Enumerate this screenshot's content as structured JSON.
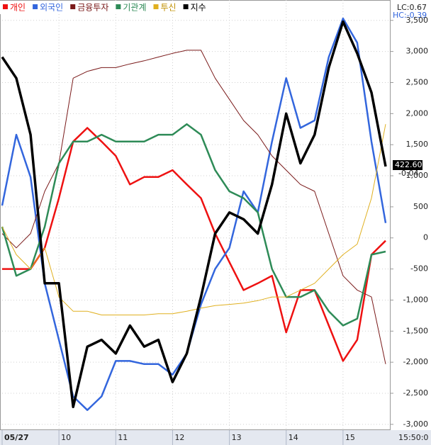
{
  "chart_data": {
    "type": "line",
    "x": [
      0,
      1,
      2,
      3,
      4,
      5,
      6,
      7,
      8,
      9,
      10,
      11,
      12,
      13,
      14,
      15,
      16,
      17,
      18,
      19,
      20,
      21,
      22,
      23,
      24,
      25,
      26,
      27
    ],
    "xlim": [
      0,
      27.35
    ],
    "xticks": [
      {
        "value": 0,
        "label": "05/27"
      },
      {
        "value": 4,
        "label": "10"
      },
      {
        "value": 8,
        "label": "11"
      },
      {
        "value": 12,
        "label": "12"
      },
      {
        "value": 16,
        "label": "13"
      },
      {
        "value": 20,
        "label": "14"
      },
      {
        "value": 24,
        "label": "15"
      }
    ],
    "ylim": [
      -3070,
      3600
    ],
    "yticks": [
      {
        "value": 3500,
        "label": "3,500"
      },
      {
        "value": 3000,
        "label": "3,000"
      },
      {
        "value": 2500,
        "label": "2,500"
      },
      {
        "value": 2000,
        "label": "2,000"
      },
      {
        "value": 1500,
        "label": "1,500"
      },
      {
        "value": 1000,
        "label": "1,000"
      },
      {
        "value": 500,
        "label": "500"
      },
      0,
      {
        "value": -500,
        "label": "-500"
      },
      {
        "value": -1000,
        "label": "-1,000"
      },
      {
        "value": -1500,
        "label": "-1,500"
      },
      {
        "value": -2000,
        "label": "-2,000"
      },
      {
        "value": -2500,
        "label": "-2,500"
      },
      {
        "value": -3000,
        "label": "-3,000"
      }
    ],
    "grid": true,
    "series": [
      {
        "name": "개인",
        "color": "#ee1111",
        "values": [
          -500,
          -500,
          -500,
          -160,
          640,
          1550,
          1770,
          1550,
          1320,
          860,
          980,
          980,
          1090,
          860,
          640,
          70,
          -390,
          -840,
          -730,
          -610,
          -1520,
          -840,
          -840,
          -1410,
          -1980,
          -1640,
          -270,
          -45
        ]
      },
      {
        "name": "외국인",
        "color": "#3366dd",
        "values": [
          520,
          1660,
          980,
          -730,
          -1640,
          -2550,
          -2770,
          -2550,
          -1980,
          -1980,
          -2030,
          -2030,
          -2200,
          -1860,
          -1070,
          -500,
          -160,
          750,
          410,
          1550,
          2570,
          1770,
          1890,
          2910,
          3530,
          3140,
          1550,
          240
        ]
      },
      {
        "name": "금융투자",
        "color": "#7a1a1a",
        "values": [
          70,
          -160,
          70,
          750,
          1200,
          2570,
          2680,
          2740,
          2740,
          2800,
          2850,
          2910,
          2970,
          3020,
          3020,
          2570,
          2230,
          1890,
          1660,
          1320,
          1090,
          860,
          750,
          70,
          -610,
          -840,
          -950,
          -2030
        ]
      },
      {
        "name": "기관계",
        "color": "#2e8b57",
        "values": [
          180,
          -610,
          -500,
          180,
          1200,
          1550,
          1550,
          1660,
          1550,
          1550,
          1550,
          1660,
          1660,
          1830,
          1660,
          1090,
          750,
          640,
          410,
          -500,
          -950,
          -950,
          -840,
          -1180,
          -1410,
          -1300,
          -270,
          -220
        ]
      },
      {
        "name": "투신",
        "color": "#e0b020",
        "values": [
          180,
          -270,
          -500,
          -160,
          -950,
          -1180,
          -1180,
          -1240,
          -1240,
          -1240,
          -1240,
          -1220,
          -1220,
          -1180,
          -1130,
          -1090,
          -1070,
          -1050,
          -1010,
          -950,
          -950,
          -840,
          -730,
          -500,
          -270,
          -100,
          640,
          1830
        ]
      },
      {
        "name": "지수",
        "color": "#000000",
        "values": [
          2910,
          2570,
          1660,
          -730,
          -730,
          -2720,
          -1750,
          -1640,
          -1860,
          -1410,
          -1750,
          -1640,
          -2320,
          -1860,
          -950,
          70,
          410,
          300,
          70,
          860,
          2000,
          1200,
          1660,
          2740,
          3480,
          2970,
          2340,
          1150
        ]
      }
    ],
    "annotations": {
      "lc": "LC:0.67",
      "hc": "HC:-0.39",
      "last_value": "422.60",
      "last_change": "-0.04",
      "time": "15:50:0"
    }
  }
}
